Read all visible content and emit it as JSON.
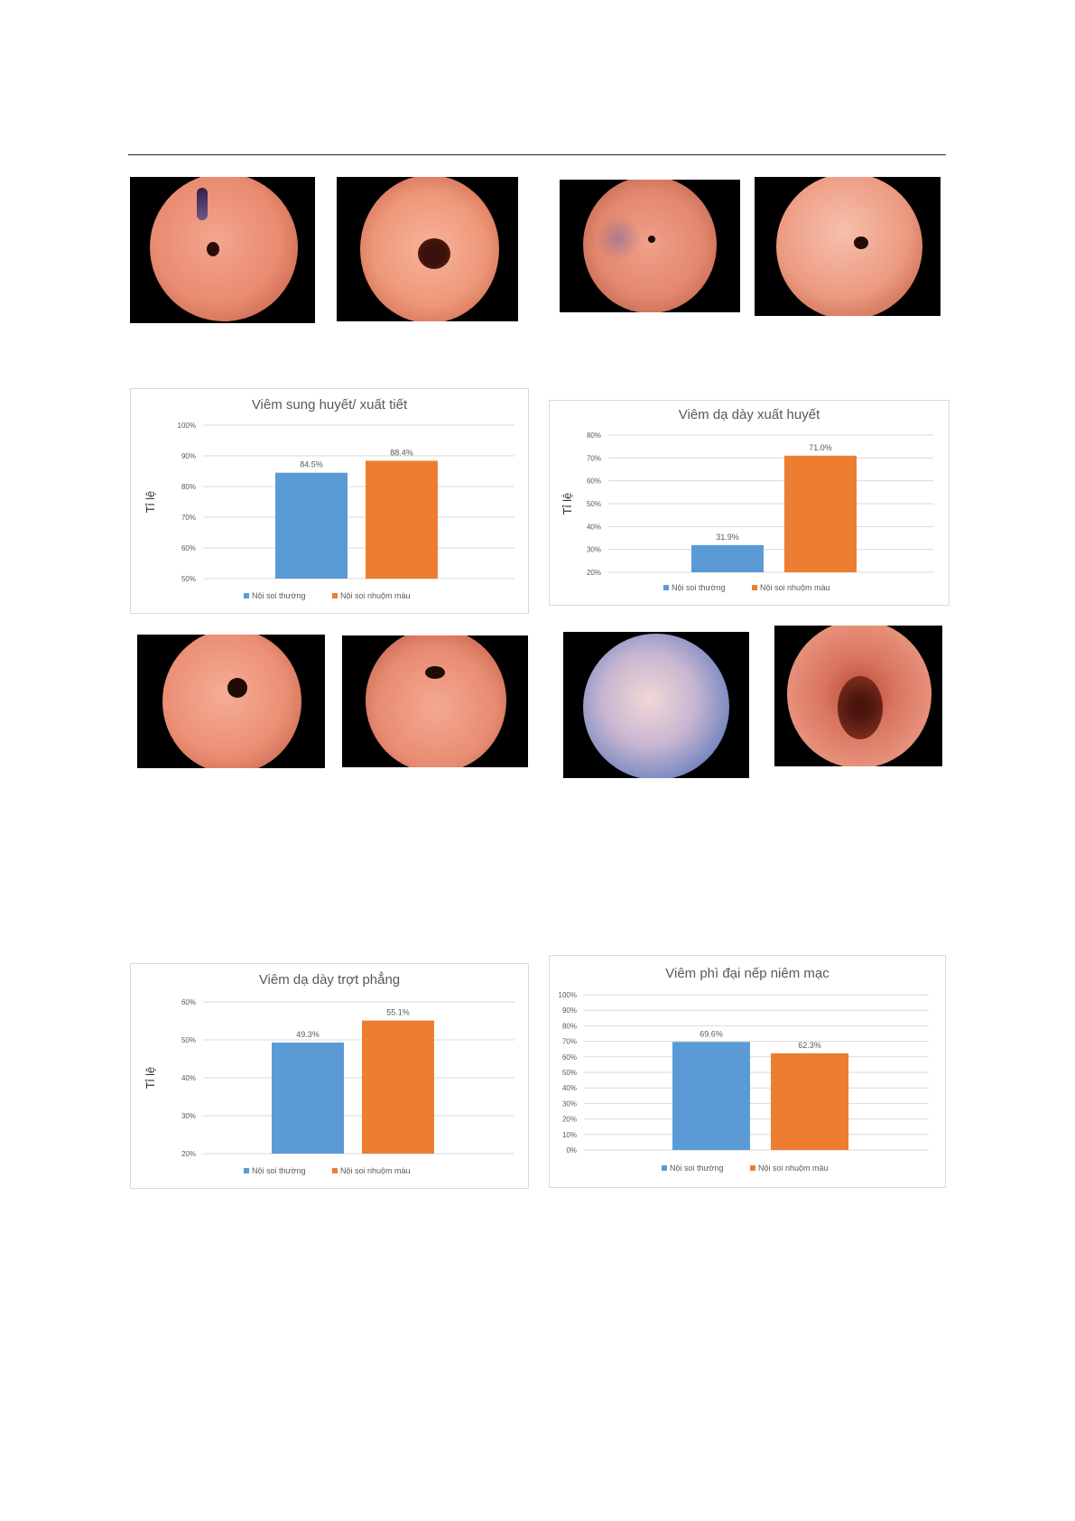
{
  "colors": {
    "normal": "#5b9bd5",
    "enhanced": "#ed7d31",
    "grid": "#d9d9d9",
    "axis_text": "#595959"
  },
  "endoscopy_images": [
    {
      "stamp_left": "",
      "stamp_right": ""
    }
  ],
  "charts": [
    {
      "id": "chart-1",
      "chart_data": {
        "type": "bar",
        "title": "Viêm sung huyết/ xuất tiết",
        "ylabel": "Tỉ lệ",
        "ylim": [
          50,
          100
        ],
        "yticks": [
          "100%",
          "90%",
          "80%",
          "70%",
          "60%",
          "50%"
        ],
        "series": [
          {
            "name": "Nội soi thường",
            "values": [
              84.5
            ],
            "label": "84.5%"
          },
          {
            "name": "Nội soi nhuộm màu",
            "values": [
              88.4
            ],
            "label": "88.4%"
          }
        ],
        "legend": "bottom",
        "grid": true
      }
    },
    {
      "id": "chart-2",
      "chart_data": {
        "type": "bar",
        "title": "Viêm dạ dày xuất huyết",
        "ylabel": "Tỉ lệ",
        "ylim": [
          20,
          80
        ],
        "yticks": [
          "80%",
          "70%",
          "60%",
          "50%",
          "40%",
          "30%",
          "20%"
        ],
        "series": [
          {
            "name": "Nội soi thường",
            "values": [
              31.9
            ],
            "label": "31.9%"
          },
          {
            "name": "Nội soi nhuộm màu",
            "values": [
              71.0
            ],
            "label": "71.0%"
          }
        ],
        "legend": "bottom",
        "grid": true
      }
    },
    {
      "id": "chart-3",
      "chart_data": {
        "type": "bar",
        "title": "Viêm dạ dày trợt phẳng",
        "ylabel": "Tỉ lệ",
        "ylim": [
          20,
          60
        ],
        "yticks": [
          "60%",
          "50%",
          "40%",
          "30%",
          "20%"
        ],
        "series": [
          {
            "name": "Nội soi thường",
            "values": [
              49.3
            ],
            "label": "49.3%"
          },
          {
            "name": "Nội soi nhuộm màu",
            "values": [
              55.1
            ],
            "label": "55.1%"
          }
        ],
        "legend": "bottom",
        "grid": true
      }
    },
    {
      "id": "chart-4",
      "chart_data": {
        "type": "bar",
        "title": "Viêm phì đại nếp niêm mạc",
        "ylabel": "",
        "ylim": [
          0,
          100
        ],
        "yticks": [
          "100%",
          "90%",
          "80%",
          "70%",
          "60%",
          "50%",
          "40%",
          "30%",
          "20%",
          "10%",
          "0%"
        ],
        "series": [
          {
            "name": "Nội soi thường",
            "values": [
              69.6
            ],
            "label": "69.6%"
          },
          {
            "name": "Nội soi nhuộm màu",
            "values": [
              62.3
            ],
            "label": "62.3%"
          }
        ],
        "legend": "bottom",
        "grid": true
      }
    }
  ]
}
